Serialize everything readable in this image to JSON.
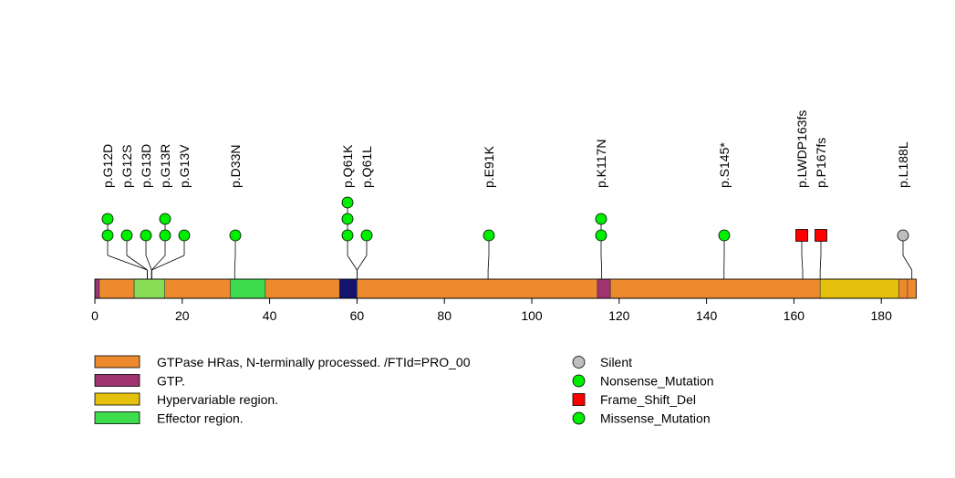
{
  "chart_data": {
    "type": "lollipop",
    "protein_length": 188,
    "x_axis": {
      "ticks": [
        0,
        20,
        40,
        60,
        80,
        100,
        120,
        140,
        160,
        180
      ],
      "range": [
        0,
        188
      ]
    },
    "regions": [
      {
        "name": "GTPase HRas, N-terminally processed. /FTId=PRO_00",
        "start": 1,
        "end": 186,
        "color": "#EE8A2E"
      },
      {
        "name": "GTP.",
        "start": 0,
        "end": 1,
        "color": "#9E336F"
      },
      {
        "name": "GTP.",
        "start": 9,
        "end": 16,
        "color": "#9E336F"
      },
      {
        "name": "Effector region.",
        "start": 9,
        "end": 16,
        "color": "#88DD55"
      },
      {
        "name": "Effector region.",
        "start": 31,
        "end": 39,
        "color": "#3DDC4D"
      },
      {
        "name": "GTP.",
        "start": 56,
        "end": 60,
        "color": "#14146E"
      },
      {
        "name": "GTP.",
        "start": 115,
        "end": 118,
        "color": "#9E336F"
      },
      {
        "name": "Hypervariable region.",
        "start": 166,
        "end": 184,
        "color": "#E5C00C"
      }
    ],
    "mutations": [
      {
        "label": "p.G12D",
        "pos": 12,
        "count": 2,
        "type": "Missense_Mutation"
      },
      {
        "label": "p.G12S",
        "pos": 12,
        "count": 1,
        "type": "Missense_Mutation"
      },
      {
        "label": "p.G13D",
        "pos": 13,
        "count": 1,
        "type": "Missense_Mutation"
      },
      {
        "label": "p.G13R",
        "pos": 13,
        "count": 2,
        "type": "Missense_Mutation"
      },
      {
        "label": "p.G13V",
        "pos": 13,
        "count": 1,
        "type": "Missense_Mutation"
      },
      {
        "label": "p.D33N",
        "pos": 32,
        "count": 1,
        "type": "Missense_Mutation"
      },
      {
        "label": "p.Q61K",
        "pos": 60,
        "count": 3,
        "type": "Missense_Mutation"
      },
      {
        "label": "p.Q61L",
        "pos": 60,
        "count": 1,
        "type": "Missense_Mutation"
      },
      {
        "label": "p.E91K",
        "pos": 90,
        "count": 1,
        "type": "Missense_Mutation"
      },
      {
        "label": "p.K117N",
        "pos": 116,
        "count": 2,
        "type": "Missense_Mutation"
      },
      {
        "label": "p.S145*",
        "pos": 144,
        "count": 1,
        "type": "Nonsense_Mutation"
      },
      {
        "label": "p.LWDP163fs",
        "pos": 162,
        "count": 1,
        "type": "Frame_Shift_Del"
      },
      {
        "label": "p.P167fs",
        "pos": 166,
        "count": 1,
        "type": "Frame_Shift_Del"
      },
      {
        "label": "p.L188L",
        "pos": 187,
        "count": 1,
        "type": "Silent"
      }
    ],
    "legend_regions": [
      {
        "label": "GTPase HRas, N-terminally processed. /FTId=PRO_00",
        "color": "#EE8A2E"
      },
      {
        "label": "GTP.",
        "color": "#9E336F"
      },
      {
        "label": "Hypervariable region.",
        "color": "#E5C00C"
      },
      {
        "label": "Effector region.",
        "color": "#3DDC4D"
      }
    ],
    "legend_mutations": [
      {
        "label": "Silent",
        "shape": "circle",
        "color": "#BEBEBE"
      },
      {
        "label": "Nonsense_Mutation",
        "shape": "circle",
        "color": "#00EE00"
      },
      {
        "label": "Frame_Shift_Del",
        "shape": "square",
        "color": "#FF0000"
      },
      {
        "label": "Missense_Mutation",
        "shape": "circle",
        "color": "#00EE00"
      }
    ]
  }
}
